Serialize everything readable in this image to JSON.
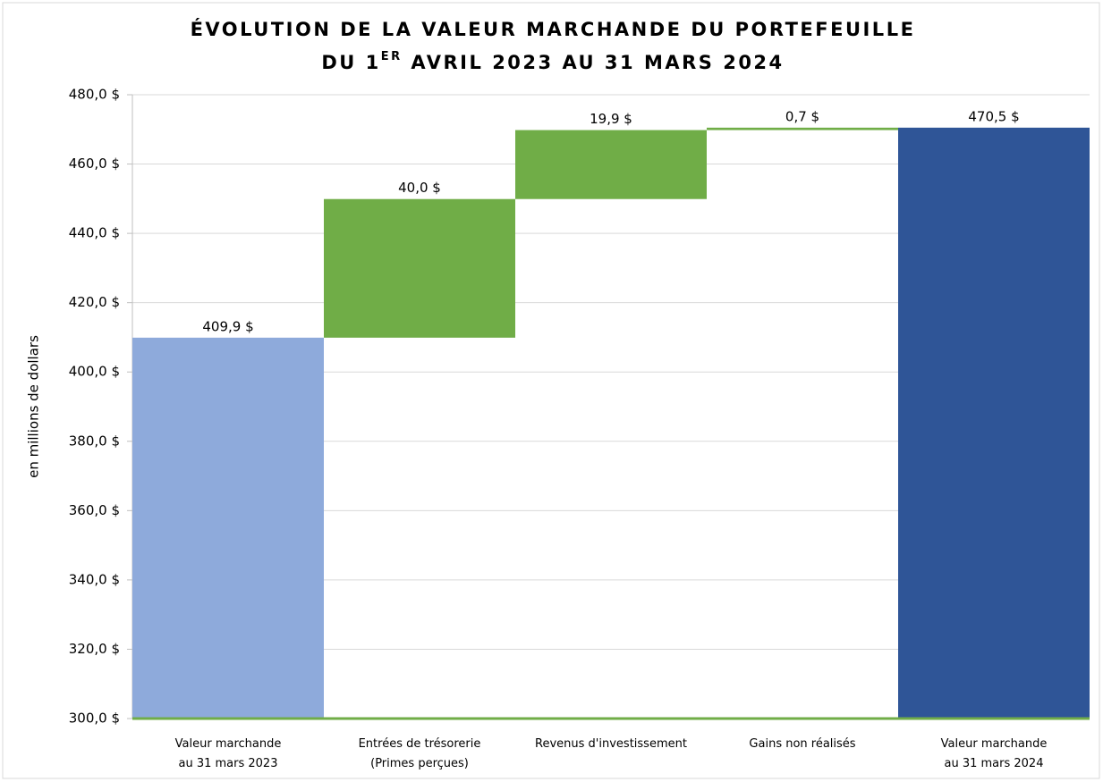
{
  "chart_data": {
    "type": "waterfall",
    "title": {
      "line1": "ÉVOLUTION DE LA VALEUR MARCHANDE DU PORTEFEUILLE",
      "line2": [
        "DU 1",
        "ER",
        " AVRIL 2023 AU 31 MARS 2024"
      ]
    },
    "y_label": "en millions de dollars",
    "categories": [
      [
        "Valeur marchande",
        "au 31 mars 2023"
      ],
      [
        "Entrées de trésorerie",
        "(Primes perçues)"
      ],
      [
        "Revenus d'investissement"
      ],
      [
        "Gains non réalisés"
      ],
      [
        "Valeur marchande",
        "au 31 mars 2024"
      ]
    ],
    "values": [
      409.9,
      40.0,
      19.9,
      0.7,
      470.5
    ],
    "value_labels": [
      "409,9 $",
      "40,0 $",
      "19,9 $",
      "0,7 $",
      "470,5 $"
    ],
    "kinds": [
      "total",
      "increase",
      "increase",
      "increase",
      "total"
    ],
    "colors": [
      "#8eaadb",
      "#70ad47",
      "#70ad47",
      "#70ad47",
      "#2f5597"
    ],
    "ylim": [
      300,
      480
    ],
    "yticks": [
      {
        "value": 300,
        "label": "300,0 $"
      },
      {
        "value": 320,
        "label": "320,0 $"
      },
      {
        "value": 340,
        "label": "340,0 $"
      },
      {
        "value": 360,
        "label": "360,0 $"
      },
      {
        "value": 380,
        "label": "380,0 $"
      },
      {
        "value": 400,
        "label": "400,0 $"
      },
      {
        "value": 420,
        "label": "420,0 $"
      },
      {
        "value": 440,
        "label": "440,0 $"
      },
      {
        "value": 460,
        "label": "460,0 $"
      },
      {
        "value": 480,
        "label": "480,0 $"
      }
    ],
    "grid": true
  }
}
